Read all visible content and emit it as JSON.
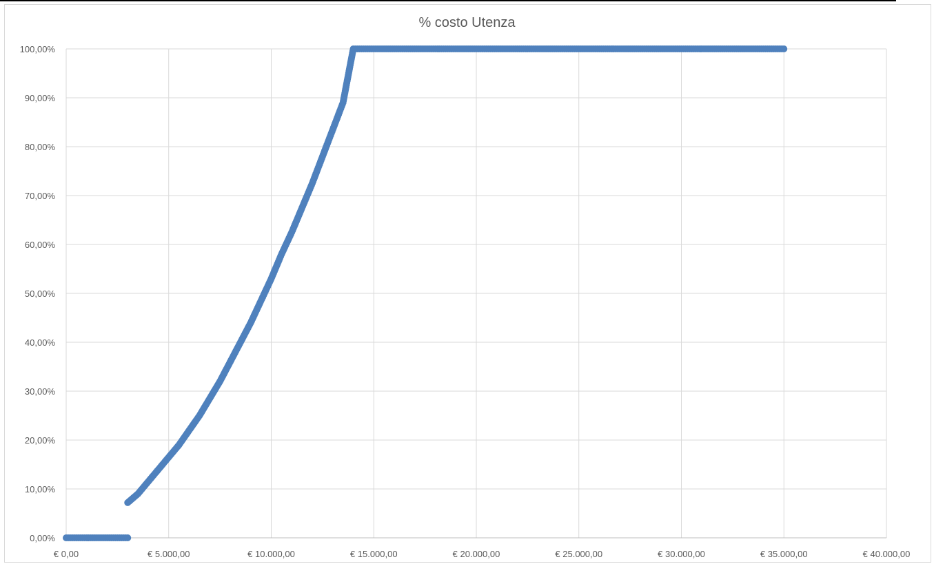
{
  "chart_data": {
    "type": "scatter",
    "title": "% costo Utenza",
    "xlabel": "",
    "ylabel": "",
    "xlim": [
      0,
      40000
    ],
    "ylim": [
      0,
      1
    ],
    "grid": true,
    "legend": "none",
    "series_color": "#4f81bd",
    "x_ticks": [
      "€ 0,00",
      "€ 5.000,00",
      "€ 10.000,00",
      "€ 15.000,00",
      "€ 20.000,00",
      "€ 25.000,00",
      "€ 30.000,00",
      "€ 35.000,00",
      "€ 40.000,00"
    ],
    "y_ticks": [
      "0,00%",
      "10,00%",
      "20,00%",
      "30,00%",
      "40,00%",
      "50,00%",
      "60,00%",
      "70,00%",
      "80,00%",
      "90,00%",
      "100,00%"
    ],
    "series": [
      {
        "points": [
          [
            0,
            0
          ],
          [
            500,
            0
          ],
          [
            1000,
            0
          ],
          [
            1500,
            0
          ],
          [
            2000,
            0
          ],
          [
            2500,
            0
          ],
          [
            3000,
            0
          ],
          [
            3000,
            0.072
          ],
          [
            3500,
            0.09
          ],
          [
            4000,
            0.115
          ],
          [
            4500,
            0.14
          ],
          [
            5000,
            0.165
          ],
          [
            5500,
            0.19
          ],
          [
            6000,
            0.22
          ],
          [
            6500,
            0.25
          ],
          [
            7000,
            0.285
          ],
          [
            7500,
            0.32
          ],
          [
            8000,
            0.36
          ],
          [
            8500,
            0.4
          ],
          [
            9000,
            0.44
          ],
          [
            9500,
            0.485
          ],
          [
            10000,
            0.53
          ],
          [
            10500,
            0.58
          ],
          [
            11000,
            0.625
          ],
          [
            11500,
            0.675
          ],
          [
            12000,
            0.725
          ],
          [
            12500,
            0.78
          ],
          [
            13000,
            0.835
          ],
          [
            13500,
            0.89
          ],
          [
            14000,
            1.0
          ],
          [
            15000,
            1.0
          ],
          [
            17500,
            1.0
          ],
          [
            20000,
            1.0
          ],
          [
            22500,
            1.0
          ],
          [
            25000,
            1.0
          ],
          [
            27500,
            1.0
          ],
          [
            30000,
            1.0
          ],
          [
            32500,
            1.0
          ],
          [
            35000,
            1.0
          ]
        ]
      }
    ]
  }
}
